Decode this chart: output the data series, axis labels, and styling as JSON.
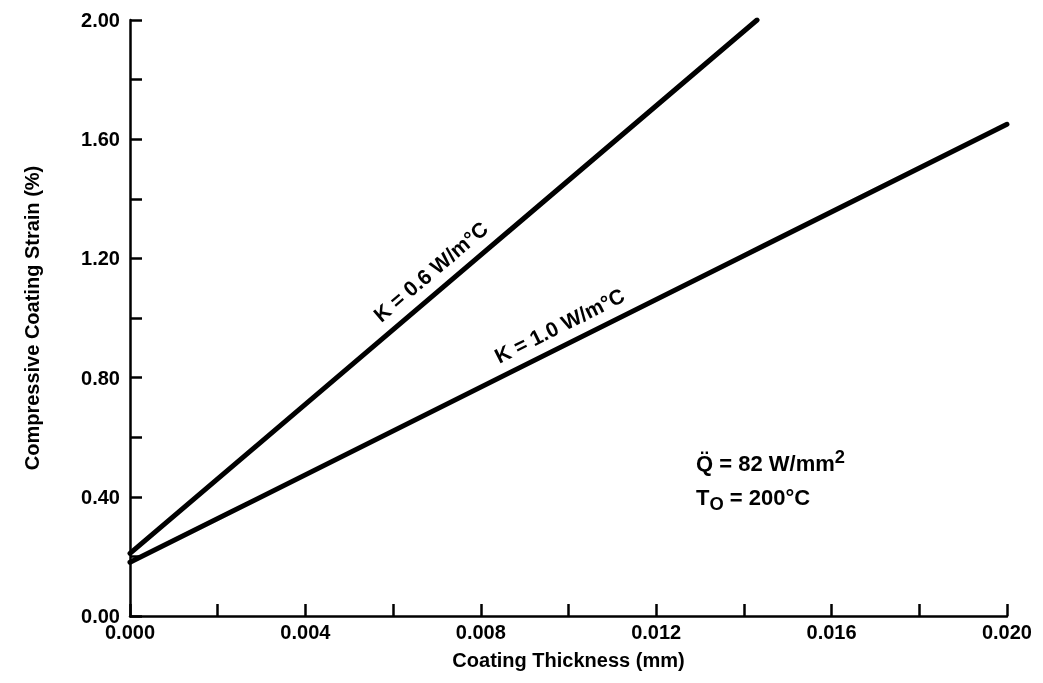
{
  "chart_data": {
    "type": "line",
    "xlabel": "Coating Thickness (mm)",
    "ylabel": "Compressive Coating Strain (%)",
    "series": [
      {
        "name": "K = 0.6 W/m°C",
        "color": "#000000",
        "x": [
          0,
          0.0143
        ],
        "values": [
          0.21,
          2.0
        ]
      },
      {
        "name": "K = 1.0 W/m°C",
        "color": "#000000",
        "x": [
          0,
          0.02
        ],
        "values": [
          0.18,
          1.65
        ]
      }
    ],
    "xlim": [
      0,
      0.02
    ],
    "xticks": [
      {
        "value": 0,
        "label": "0.000"
      },
      {
        "value": 0.002,
        "label": null
      },
      {
        "value": 0.004,
        "label": "0.004"
      },
      {
        "value": 0.006,
        "label": null
      },
      {
        "value": 0.008,
        "label": "0.008"
      },
      {
        "value": 0.01,
        "label": null
      },
      {
        "value": 0.012,
        "label": "0.012"
      },
      {
        "value": 0.014,
        "label": null
      },
      {
        "value": 0.016,
        "label": "0.016"
      },
      {
        "value": 0.018,
        "label": null
      },
      {
        "value": 0.02,
        "label": "0.020"
      }
    ],
    "ylim": [
      0,
      2
    ],
    "yticks": [
      {
        "value": 0,
        "label": "0.00"
      },
      {
        "value": 0.2,
        "label": null
      },
      {
        "value": 0.4,
        "label": "0.40"
      },
      {
        "value": 0.6,
        "label": null
      },
      {
        "value": 0.8,
        "label": "0.80"
      },
      {
        "value": 1.0,
        "label": null
      },
      {
        "value": 1.2,
        "label": "1.20"
      },
      {
        "value": 1.4,
        "label": null
      },
      {
        "value": 1.6,
        "label": "1.60"
      },
      {
        "value": 1.8,
        "label": null
      },
      {
        "value": 2.0,
        "label": "2.00"
      }
    ],
    "annotations": [
      "Q̈ = 82 W/mm$^{2}$",
      "T$_{O}$ = 200°C"
    ],
    "grid": false,
    "marker": "none",
    "line_style": "solid"
  }
}
